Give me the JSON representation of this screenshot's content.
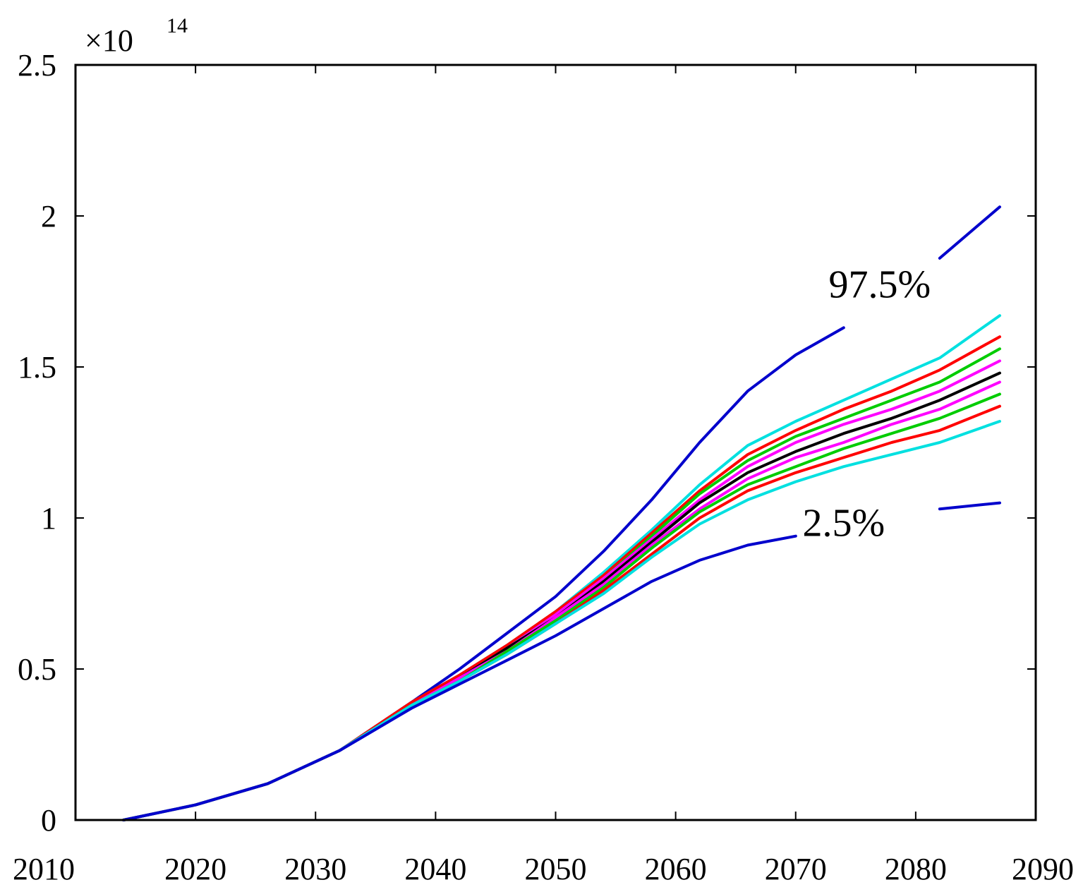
{
  "chart_data": {
    "type": "line",
    "title": "",
    "xlabel": "",
    "ylabel": "",
    "y_multiplier_base": "×10",
    "y_multiplier_exponent": "14",
    "xlim": [
      2010,
      2090
    ],
    "ylim": [
      0,
      2.5
    ],
    "x_ticks": [
      2010,
      2020,
      2030,
      2040,
      2050,
      2060,
      2070,
      2080,
      2090
    ],
    "x_tick_labels": [
      "2010",
      "2020",
      "2030",
      "2040",
      "2050",
      "2060",
      "2070",
      "2080",
      "2090"
    ],
    "y_ticks": [
      0,
      0.5,
      1,
      1.5,
      2,
      2.5
    ],
    "y_tick_labels": [
      "0",
      "0.5",
      "1",
      "1.5",
      "2",
      "2.5"
    ],
    "grid": false,
    "annotations": [
      {
        "text": "97.5%",
        "x": 2077,
        "y": 1.73
      },
      {
        "text": "2.5%",
        "x": 2074,
        "y": 0.94
      }
    ],
    "x": [
      2014,
      2020,
      2026,
      2032,
      2038,
      2042,
      2046,
      2050,
      2054,
      2058,
      2062,
      2066,
      2070,
      2074,
      2078,
      2082,
      2087
    ],
    "series": [
      {
        "name": "upper-97.5",
        "color": "#0000cc",
        "values": [
          0.0,
          0.05,
          0.12,
          0.23,
          0.39,
          0.5,
          0.62,
          0.74,
          0.89,
          1.06,
          1.25,
          1.42,
          1.54,
          1.63,
          null,
          1.86,
          2.03
        ]
      },
      {
        "name": "cyan-upper",
        "color": "#00e0e0",
        "values": [
          0.0,
          0.05,
          0.12,
          0.23,
          0.39,
          0.48,
          0.58,
          0.69,
          0.82,
          0.96,
          1.11,
          1.24,
          1.32,
          1.39,
          1.46,
          1.53,
          1.67
        ]
      },
      {
        "name": "red-upper",
        "color": "#ff0000",
        "values": [
          0.0,
          0.05,
          0.12,
          0.23,
          0.39,
          0.48,
          0.58,
          0.69,
          0.81,
          0.95,
          1.09,
          1.21,
          1.29,
          1.36,
          1.42,
          1.49,
          1.6
        ]
      },
      {
        "name": "green-upper",
        "color": "#00cc00",
        "values": [
          0.0,
          0.05,
          0.12,
          0.23,
          0.38,
          0.47,
          0.57,
          0.68,
          0.8,
          0.94,
          1.08,
          1.19,
          1.27,
          1.33,
          1.39,
          1.45,
          1.56
        ]
      },
      {
        "name": "magenta-upper",
        "color": "#ff00ff",
        "values": [
          0.0,
          0.05,
          0.12,
          0.23,
          0.38,
          0.47,
          0.57,
          0.68,
          0.8,
          0.93,
          1.06,
          1.17,
          1.25,
          1.31,
          1.36,
          1.42,
          1.52
        ]
      },
      {
        "name": "median",
        "color": "#000000",
        "values": [
          0.0,
          0.05,
          0.12,
          0.23,
          0.38,
          0.47,
          0.57,
          0.67,
          0.79,
          0.92,
          1.05,
          1.15,
          1.22,
          1.28,
          1.33,
          1.39,
          1.48
        ]
      },
      {
        "name": "magenta-lower",
        "color": "#ff00ff",
        "values": [
          0.0,
          0.05,
          0.12,
          0.23,
          0.38,
          0.47,
          0.56,
          0.67,
          0.78,
          0.91,
          1.03,
          1.13,
          1.2,
          1.25,
          1.31,
          1.36,
          1.45
        ]
      },
      {
        "name": "green-lower",
        "color": "#00cc00",
        "values": [
          0.0,
          0.05,
          0.12,
          0.23,
          0.38,
          0.46,
          0.56,
          0.66,
          0.77,
          0.9,
          1.02,
          1.11,
          1.17,
          1.23,
          1.28,
          1.33,
          1.41
        ]
      },
      {
        "name": "red-lower",
        "color": "#ff0000",
        "values": [
          0.0,
          0.05,
          0.12,
          0.23,
          0.38,
          0.46,
          0.55,
          0.65,
          0.76,
          0.88,
          1.0,
          1.09,
          1.15,
          1.2,
          1.25,
          1.29,
          1.37
        ]
      },
      {
        "name": "cyan-lower",
        "color": "#00e0e0",
        "values": [
          0.0,
          0.05,
          0.12,
          0.23,
          0.38,
          0.46,
          0.55,
          0.65,
          0.75,
          0.87,
          0.98,
          1.06,
          1.12,
          1.17,
          1.21,
          1.25,
          1.32
        ]
      },
      {
        "name": "lower-2.5",
        "color": "#0000cc",
        "values": [
          0.0,
          0.05,
          0.12,
          0.23,
          0.37,
          0.45,
          0.53,
          0.61,
          0.7,
          0.79,
          0.86,
          0.91,
          0.94,
          null,
          null,
          1.03,
          1.05
        ]
      }
    ]
  }
}
